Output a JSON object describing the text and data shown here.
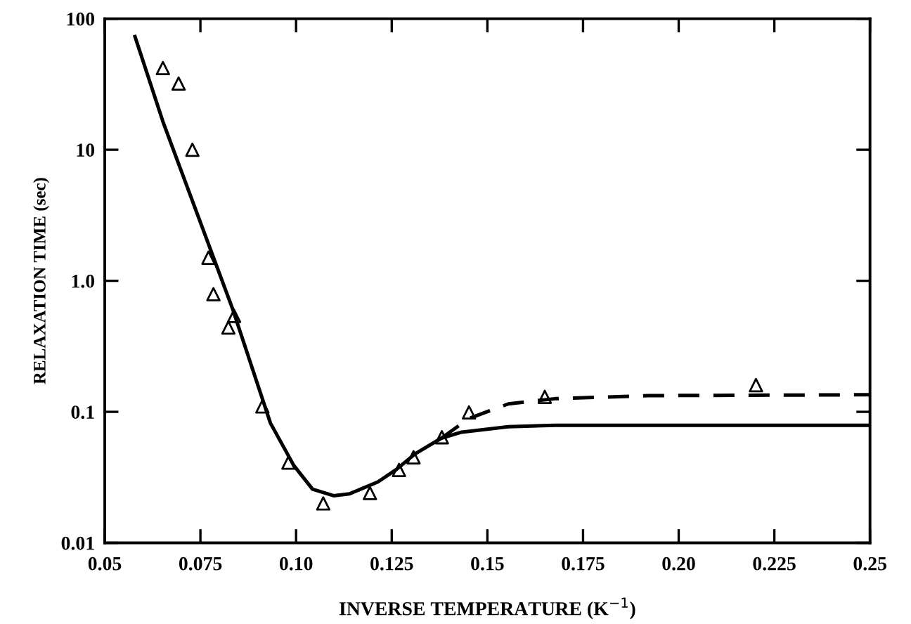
{
  "chart_data": {
    "type": "scatter",
    "xlabel": "INVERSE TEMPERATURE (K$^{−1}$)",
    "ylabel": "RELAXATION TIME (sec)",
    "log": "y",
    "grid": false,
    "legend": false,
    "xlim": [
      0.05,
      0.25
    ],
    "xticks": [
      0.05,
      0.075,
      {
        "value": 0.1,
        "label": "0.10"
      },
      0.125,
      0.15,
      0.175,
      {
        "value": 0.2,
        "label": "0.20"
      },
      0.225,
      0.25
    ],
    "ylim": [
      0.01,
      100
    ],
    "yticks": [
      0.01,
      0.1,
      {
        "value": 1,
        "label": "1.0"
      },
      10,
      100
    ],
    "series": [
      {
        "marker": "triangle",
        "color": "#000000",
        "x": [
          0.0652,
          0.0693,
          0.0729,
          0.0771,
          0.0784,
          0.0838,
          0.0823,
          0.0912,
          0.098,
          0.1071,
          0.1193,
          0.1269,
          0.1307,
          0.1381,
          0.1452,
          0.165,
          0.2202
        ],
        "values": [
          42,
          32,
          10,
          1.5,
          0.79,
          0.54,
          0.44,
          0.11,
          0.041,
          0.02,
          0.024,
          0.036,
          0.045,
          0.064,
          0.099,
          0.13,
          0.16
        ]
      },
      {
        "type": "line",
        "marker": "none",
        "line_style": "solid",
        "color": "#000000",
        "x": [
          0.0579,
          0.0652,
          0.0835,
          0.0933,
          0.0994,
          0.1043,
          0.1098,
          0.114,
          0.1214,
          0.1262,
          0.1311,
          0.138,
          0.1433,
          0.1555,
          0.1677,
          0.25
        ],
        "values": [
          73,
          16.4,
          0.6,
          0.082,
          0.039,
          0.0257,
          0.0229,
          0.0237,
          0.0292,
          0.0363,
          0.0478,
          0.063,
          0.07,
          0.077,
          0.079,
          0.079
        ]
      },
      {
        "type": "line",
        "marker": "none",
        "line_style": "dashed",
        "color": "#000000",
        "x": [
          0.138,
          0.1452,
          0.1555,
          0.1677,
          0.1921,
          0.25
        ],
        "values": [
          0.063,
          0.089,
          0.115,
          0.126,
          0.133,
          0.135
        ]
      }
    ]
  }
}
